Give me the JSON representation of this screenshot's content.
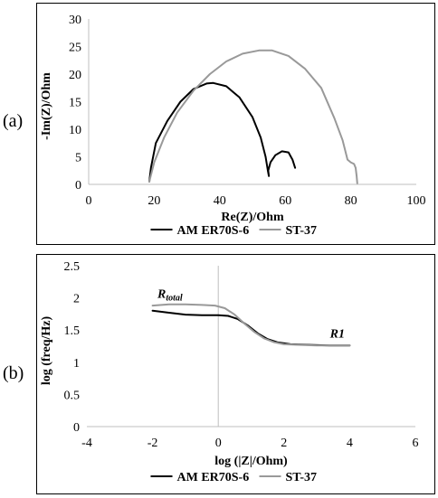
{
  "panel_labels": [
    "(a)",
    "(b)"
  ],
  "colors": {
    "AM ER70S-6": "#000000",
    "ST-37": "#999999",
    "axis": "#bfbfbf"
  },
  "chart_data": [
    {
      "type": "line",
      "title": "",
      "xlabel": "Re(Z)/Ohm",
      "ylabel": "-Im(Z)/Ohm",
      "xlim": [
        0,
        100
      ],
      "ylim": [
        0,
        30
      ],
      "xticks": [
        0,
        20,
        40,
        60,
        80,
        100
      ],
      "yticks": [
        0,
        5,
        10,
        15,
        20,
        25,
        30
      ],
      "grid": false,
      "legend": "bottom",
      "series": [
        {
          "name": "AM ER70S-6",
          "x": [
            18.5,
            19.0,
            20.5,
            24,
            28,
            32,
            36,
            38,
            42,
            46,
            50,
            52.5,
            54,
            54.7,
            55,
            54.8,
            55.5,
            57,
            59,
            61,
            62.2,
            63
          ],
          "y": [
            0.5,
            3.0,
            7.5,
            11.5,
            15.0,
            17.3,
            18.3,
            18.4,
            17.8,
            15.8,
            12.2,
            8.5,
            5.0,
            2.5,
            1.5,
            2.5,
            4.0,
            5.3,
            6.0,
            5.8,
            4.5,
            3.0
          ]
        },
        {
          "name": "ST-37",
          "x": [
            18.5,
            20,
            23,
            27,
            32,
            37,
            42,
            47,
            52,
            56,
            61,
            66,
            71,
            75,
            77.5,
            79,
            80,
            81,
            81.5,
            81.8,
            82
          ],
          "y": [
            0.5,
            4.0,
            8.5,
            13.0,
            17.0,
            20.0,
            22.3,
            23.7,
            24.3,
            24.3,
            23.3,
            21.0,
            17.5,
            12.0,
            8.0,
            4.5,
            4.0,
            3.7,
            3.0,
            1.5,
            0.2
          ]
        }
      ]
    },
    {
      "type": "line",
      "title": "",
      "xlabel": "log (|Z|/Ohm)",
      "ylabel": "log (freq/Hz)",
      "xlim": [
        -4,
        6
      ],
      "ylim": [
        0,
        2.5
      ],
      "xticks": [
        -4,
        -2,
        0,
        2,
        4,
        6
      ],
      "yticks": [
        0,
        0.5,
        1,
        1.5,
        2,
        2.5
      ],
      "grid": false,
      "legend": "bottom",
      "annotations": [
        {
          "text": "R",
          "sub": "total",
          "x": -1.85,
          "y": 2.0
        },
        {
          "text": "R1",
          "sub": "",
          "x": 3.4,
          "y": 1.38
        }
      ],
      "series": [
        {
          "name": "AM ER70S-6",
          "x": [
            -2,
            -1.5,
            -1,
            -0.5,
            0,
            0.3,
            0.6,
            0.9,
            1.2,
            1.5,
            1.8,
            2.2,
            2.8,
            3.4,
            4
          ],
          "y": [
            1.8,
            1.77,
            1.74,
            1.73,
            1.73,
            1.72,
            1.67,
            1.57,
            1.45,
            1.36,
            1.31,
            1.28,
            1.27,
            1.26,
            1.26
          ]
        },
        {
          "name": "ST-37",
          "x": [
            -2,
            -1.5,
            -1,
            -0.5,
            -0.1,
            0.2,
            0.5,
            0.8,
            1.1,
            1.4,
            1.7,
            2.0,
            2.5,
            3.0,
            3.5,
            4
          ],
          "y": [
            1.88,
            1.9,
            1.9,
            1.89,
            1.88,
            1.84,
            1.74,
            1.6,
            1.47,
            1.37,
            1.31,
            1.28,
            1.27,
            1.26,
            1.26,
            1.26
          ]
        }
      ]
    }
  ]
}
